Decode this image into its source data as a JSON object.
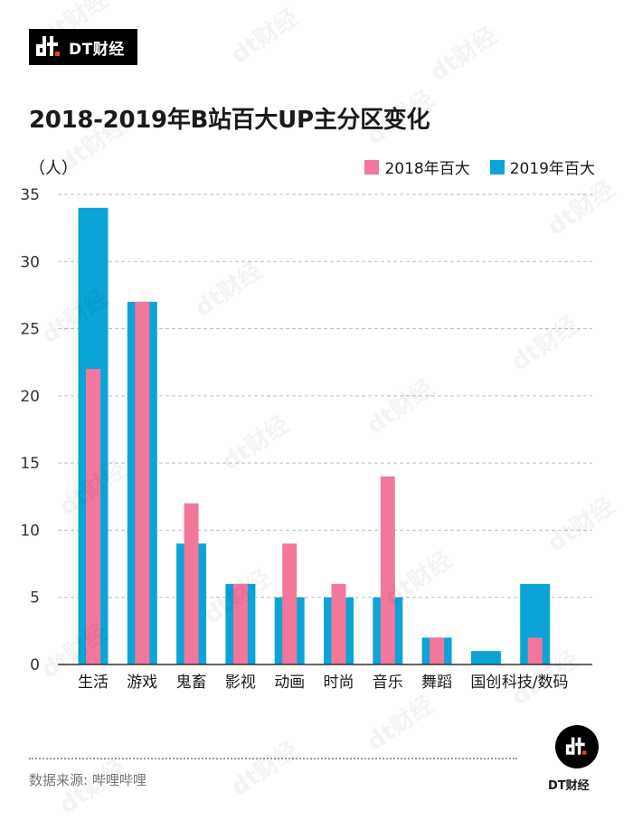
{
  "brand": {
    "name": "DT财经"
  },
  "watermark_text": "dt财经",
  "source": "数据来源: 哔哩哔哩",
  "colors": {
    "series_2018": "#f2779b",
    "series_2019": "#0aa5d6",
    "grid": "#bdbdbd",
    "axis": "#333333"
  },
  "chart_data": {
    "type": "bar",
    "title": "2018-2019年B站百大UP主分区变化",
    "ylabel": "（人）",
    "xlabel": "",
    "ylim": [
      0,
      35
    ],
    "yticks": [
      0,
      5,
      10,
      15,
      20,
      25,
      30,
      35
    ],
    "grid": true,
    "legend_position": "top-right",
    "categories": [
      "生活",
      "游戏",
      "鬼畜",
      "影视",
      "动画",
      "时尚",
      "音乐",
      "舞蹈",
      "国创",
      "科技/数码"
    ],
    "series": [
      {
        "name": "2018年百大",
        "values": [
          22,
          27,
          12,
          6,
          9,
          6,
          14,
          2,
          0,
          2
        ]
      },
      {
        "name": "2019年百大",
        "values": [
          34,
          27,
          9,
          6,
          5,
          5,
          5,
          2,
          1,
          6
        ]
      }
    ]
  }
}
